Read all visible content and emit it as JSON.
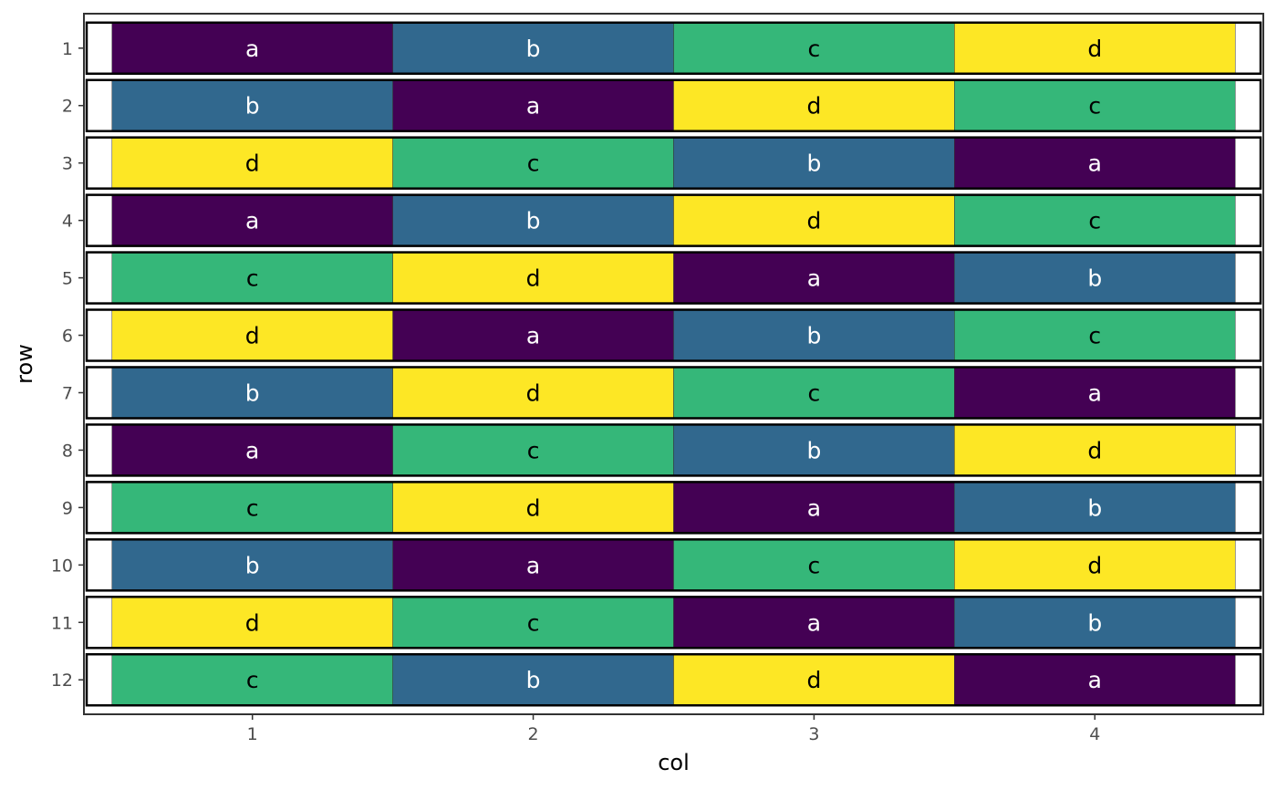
{
  "chart_data": {
    "type": "heatmap",
    "title": "",
    "xlabel": "col",
    "ylabel": "row",
    "x_categories": [
      "1",
      "2",
      "3",
      "4"
    ],
    "y_categories": [
      "1",
      "2",
      "3",
      "4",
      "5",
      "6",
      "7",
      "8",
      "9",
      "10",
      "11",
      "12"
    ],
    "cells": [
      [
        "a",
        "b",
        "c",
        "d"
      ],
      [
        "b",
        "a",
        "d",
        "c"
      ],
      [
        "d",
        "c",
        "b",
        "a"
      ],
      [
        "a",
        "b",
        "d",
        "c"
      ],
      [
        "c",
        "d",
        "a",
        "b"
      ],
      [
        "d",
        "a",
        "b",
        "c"
      ],
      [
        "b",
        "d",
        "c",
        "a"
      ],
      [
        "a",
        "c",
        "b",
        "d"
      ],
      [
        "c",
        "d",
        "a",
        "b"
      ],
      [
        "b",
        "a",
        "c",
        "d"
      ],
      [
        "d",
        "c",
        "a",
        "b"
      ],
      [
        "c",
        "b",
        "d",
        "a"
      ]
    ],
    "fill_colors": {
      "a": "#440154",
      "b": "#31688e",
      "c": "#35b779",
      "d": "#fde725"
    },
    "label_colors": {
      "a": "#ffffff",
      "b": "#ffffff",
      "c": "#000000",
      "d": "#000000"
    },
    "row_outline": "black",
    "legend": "none",
    "grid": false
  }
}
